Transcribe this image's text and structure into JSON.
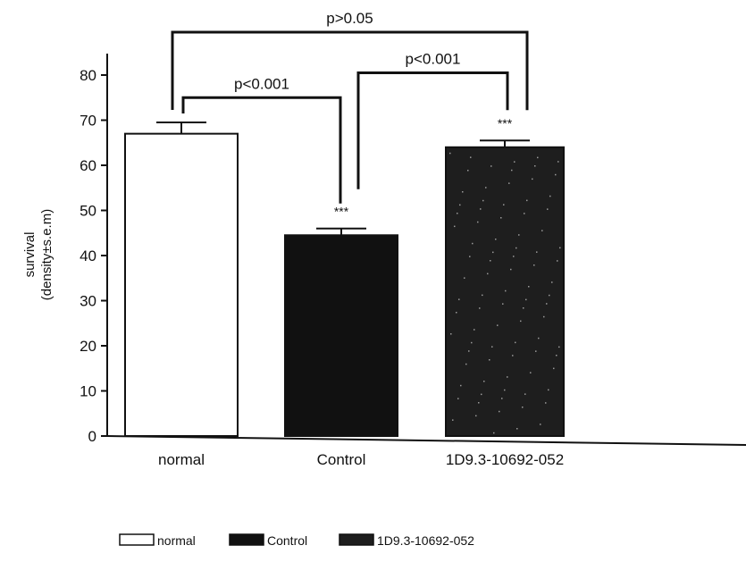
{
  "chart_data": {
    "type": "bar",
    "title": "",
    "xlabel": "",
    "ylabel_line1": "survival",
    "ylabel_line2": "(density±s.e.m)",
    "ylim": [
      0,
      85
    ],
    "yticks": [
      0,
      10,
      20,
      30,
      40,
      50,
      60,
      70,
      80
    ],
    "categories": [
      "normal",
      "Control",
      "1D9.3-10692-052"
    ],
    "values": [
      67,
      44.5,
      64
    ],
    "errors": [
      2.5,
      1.5,
      1.5
    ],
    "bar_colors": [
      "#ffffff",
      "#111111",
      "#1e1e1e"
    ],
    "significance_stars": [
      "",
      "***",
      "***"
    ],
    "comparisons": [
      {
        "from": 0,
        "to": 1,
        "label": "p<0.001",
        "level": 75
      },
      {
        "from": 1,
        "to": 2,
        "label": "p<0.001",
        "level": 80.5
      },
      {
        "from": 0,
        "to": 2,
        "label": "p>0.05",
        "level": 89.5
      }
    ],
    "legend": {
      "position": "bottom",
      "entries": [
        "normal",
        "Control",
        "1D9.3-10692-052"
      ]
    },
    "grid": false
  }
}
